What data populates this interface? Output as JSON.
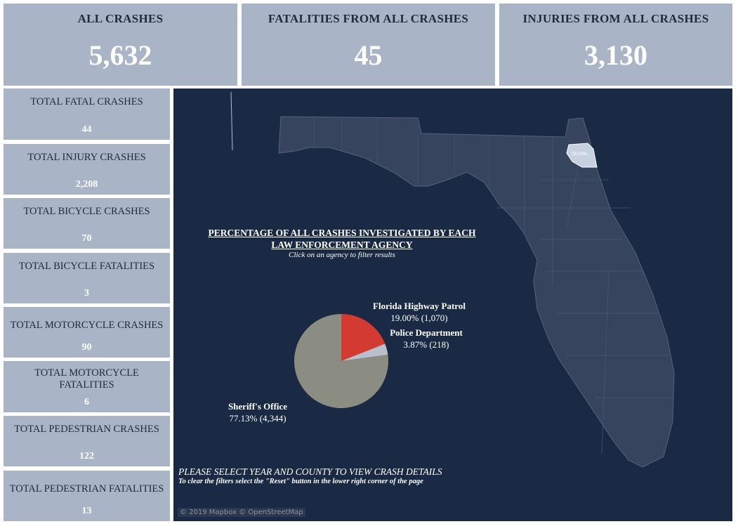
{
  "kpis": [
    {
      "title": "ALL CRASHES",
      "value": "5,632"
    },
    {
      "title": "FATALITIES FROM ALL CRASHES",
      "value": "45"
    },
    {
      "title": "INJURIES FROM ALL CRASHES",
      "value": "3,130"
    }
  ],
  "side": [
    {
      "title": "TOTAL FATAL CRASHES",
      "value": "44"
    },
    {
      "title": "TOTAL INJURY CRASHES",
      "value": "2,208"
    },
    {
      "title": "TOTAL BICYCLE CRASHES",
      "value": "70"
    },
    {
      "title": "TOTAL BICYCLE FATALITIES",
      "value": "3"
    },
    {
      "title": "TOTAL MOTORCYCLE CRASHES",
      "value": "90"
    },
    {
      "title": "TOTAL MOTORCYCLE FATALITIES",
      "value": "6"
    },
    {
      "title": "TOTAL PEDESTRIAN CRASHES",
      "value": "122"
    },
    {
      "title": "TOTAL PEDESTRIAN FATALITIES",
      "value": "13"
    }
  ],
  "map": {
    "selected_county": "DUVAL",
    "attribution": "© 2019 Mapbox  © OpenStreetMap",
    "instructions": "PLEASE SELECT YEAR AND COUNTY TO VIEW CRASH DETAILS",
    "instructions_sub": "To clear the filters select the \"Reset\" button in the lower right corner of the page"
  },
  "pie": {
    "title_line1": "PERCENTAGE OF ALL CRASHES INVESTIGATED BY EACH",
    "title_line2": "LAW ENFORCEMENT AGENCY",
    "subtitle": "Click on an agency to filter results",
    "slices": [
      {
        "name": "Florida Highway Patrol",
        "pct": 19.0,
        "count": 1070,
        "label": "19.00% (1,070)",
        "color": "#d33b32"
      },
      {
        "name": "Police Department",
        "pct": 3.87,
        "count": 218,
        "label": "3.87% (218)",
        "color": "#b9c0cc"
      },
      {
        "name": "Sheriff's Office",
        "pct": 77.13,
        "count": 4344,
        "label": "77.13% (4,344)",
        "color": "#8b8d82"
      }
    ]
  }
}
